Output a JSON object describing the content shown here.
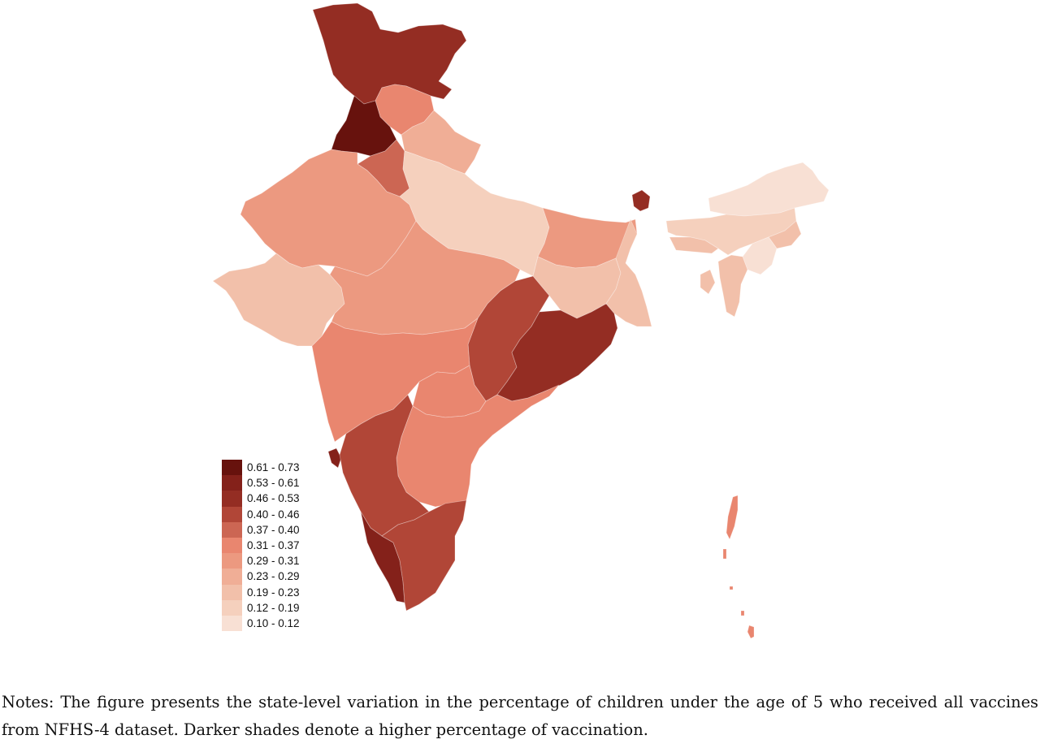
{
  "legend": {
    "items": [
      {
        "label": "0.61 - 0.73",
        "color": "#67120d"
      },
      {
        "label": "0.53 - 0.61",
        "color": "#84211a"
      },
      {
        "label": "0.46 - 0.53",
        "color": "#942d23"
      },
      {
        "label": "0.40 - 0.46",
        "color": "#b14637"
      },
      {
        "label": "0.37 - 0.40",
        "color": "#cc6653"
      },
      {
        "label": "0.31 - 0.37",
        "color": "#e9866f"
      },
      {
        "label": "0.29 - 0.31",
        "color": "#ec9980"
      },
      {
        "label": "0.23 - 0.29",
        "color": "#f0ae96"
      },
      {
        "label": "0.19 - 0.23",
        "color": "#f2c0aa"
      },
      {
        "label": "0.12 - 0.19",
        "color": "#f5d0bd"
      },
      {
        "label": "0.10 - 0.12",
        "color": "#f8e0d4"
      }
    ]
  },
  "notes": "Notes: The figure presents the state-level variation in the percentage of children under the age of 5 who received all vaccines from NFHS-4 dataset. Darker shades denote a higher percentage of vaccination."
}
